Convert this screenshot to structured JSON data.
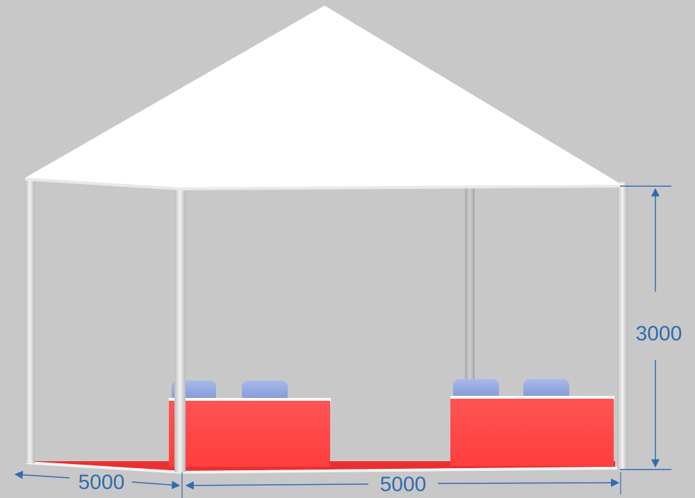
{
  "scene": {
    "background_color": "#c8c8c8",
    "roof_color": "#ffffff",
    "floor_color": "#e83030",
    "counter_color": "#ff4848",
    "chair_color": "#8fa8e0",
    "pole_color": "#e6e6e6",
    "dimension_color": "#2f6bb0"
  },
  "dimensions": {
    "height": "3000",
    "width_front": "5000",
    "depth_side": "5000"
  }
}
